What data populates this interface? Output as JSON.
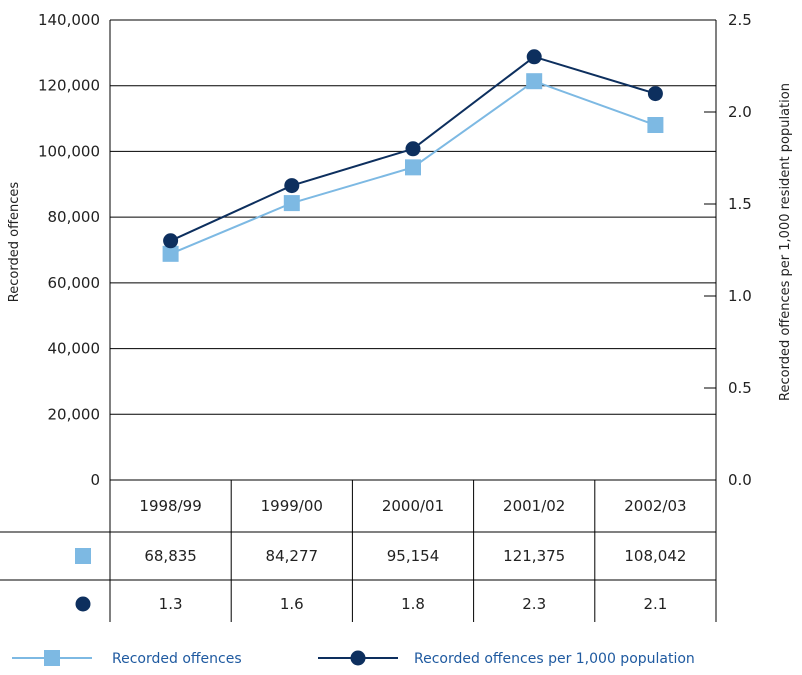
{
  "chart_data": {
    "type": "line",
    "categories": [
      "1998/99",
      "1999/00",
      "2000/01",
      "2001/02",
      "2002/03"
    ],
    "series": [
      {
        "name": "Recorded offences",
        "axis": "left",
        "values": [
          68835,
          84277,
          95154,
          121375,
          108042
        ],
        "display": [
          "68,835",
          "84,277",
          "95,154",
          "121,375",
          "108,042"
        ],
        "color": "#7db9e3",
        "marker": "square"
      },
      {
        "name": "Recorded offences per 1,000 population",
        "axis": "right",
        "values": [
          1.3,
          1.6,
          1.8,
          2.3,
          2.1
        ],
        "display": [
          "1.3",
          "1.6",
          "1.8",
          "2.3",
          "2.1"
        ],
        "color": "#0d2f5e",
        "marker": "circle"
      }
    ],
    "ylabel_left": "Recorded offences",
    "ylabel_right": "Recorded offences per 1,000 resident population",
    "ylim_left": [
      0,
      140000
    ],
    "ylim_right": [
      0,
      2.5
    ],
    "yticks_left": [
      "0",
      "20,000",
      "40,000",
      "60,000",
      "80,000",
      "100,000",
      "120,000",
      "140,000"
    ],
    "yticks_right": [
      "0.0",
      "0.5",
      "1.0",
      "1.5",
      "2.0",
      "2.5"
    ],
    "grid": true,
    "legend_position": "bottom"
  }
}
